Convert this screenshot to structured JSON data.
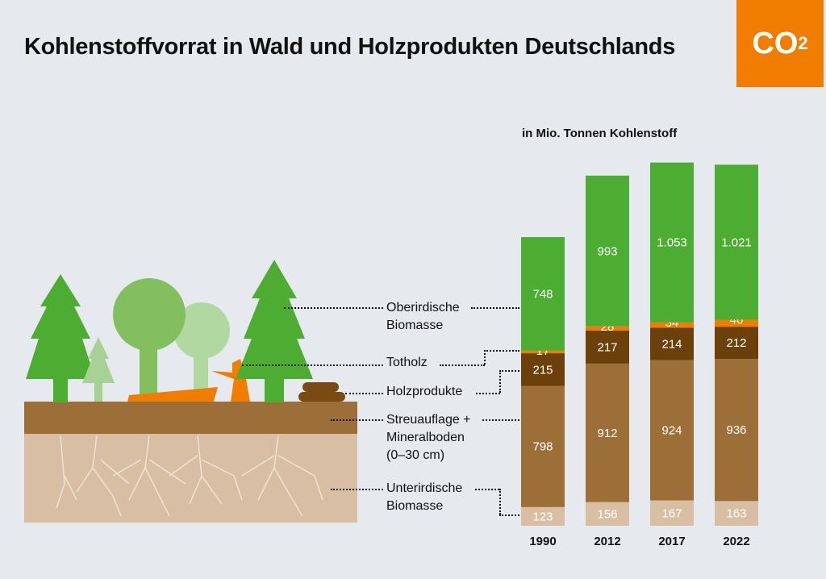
{
  "title": "Kohlenstoffvorrat in Wald und Holzprodukten Deutschlands",
  "badge": {
    "main": "CO",
    "sub": "2"
  },
  "chart_data": {
    "type": "bar",
    "stacked": true,
    "unit_label": "in Mio. Tonnen Kohlenstoff",
    "categories": [
      "1990",
      "2012",
      "2017",
      "2022"
    ],
    "series": [
      {
        "name": "Unterirdische Biomasse",
        "color": "#d8bea2",
        "values": [
          123,
          156,
          167,
          163
        ],
        "labels": [
          "123",
          "156",
          "167",
          "163"
        ]
      },
      {
        "name": "Streuauflage + Mineralboden (0–30 cm)",
        "color": "#9c6f38",
        "values": [
          798,
          912,
          924,
          936
        ],
        "labels": [
          "798",
          "912",
          "924",
          "936"
        ]
      },
      {
        "name": "Holzprodukte",
        "color": "#6b400b",
        "values": [
          215,
          217,
          214,
          212
        ],
        "labels": [
          "215",
          "217",
          "214",
          "212"
        ]
      },
      {
        "name": "Totholz",
        "color": "#f07c00",
        "values": [
          17,
          28,
          34,
          46
        ],
        "labels": [
          "17",
          "28",
          "34",
          "46"
        ]
      },
      {
        "name": "Oberirdische Biomasse",
        "color": "#4dac32",
        "values": [
          748,
          993,
          1053,
          1021
        ],
        "labels": [
          "748",
          "993",
          "1.053",
          "1.021"
        ]
      }
    ]
  },
  "legend": {
    "oberirdisch": [
      "Oberirdische",
      "Biomasse"
    ],
    "totholz": "Totholz",
    "holzprodukte": "Holzprodukte",
    "streu": [
      "Streuauflage +",
      "Mineralboden",
      "(0–30 cm)"
    ],
    "unterirdisch": [
      "Unterirdische",
      "Biomasse"
    ]
  }
}
